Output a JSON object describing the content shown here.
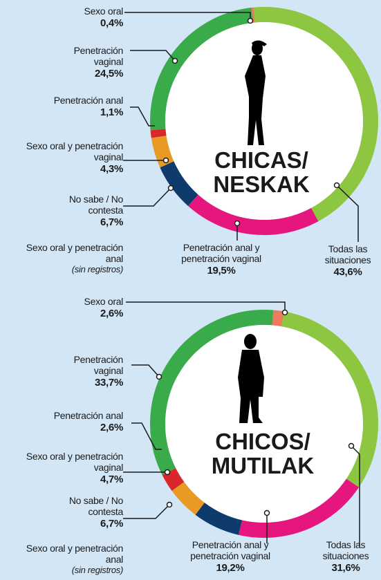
{
  "chart_data": [
    {
      "type": "donut",
      "title_lines": [
        "CHICAS/",
        "NESKAK"
      ],
      "categories": [
        "Sexo oral",
        "Penetración vaginal",
        "Penetración anal",
        "Sexo oral y penetración vaginal",
        "No sabe / No contesta",
        "Penetración anal y penetración vaginal",
        "Todas las situaciones"
      ],
      "values": [
        0.4,
        24.5,
        1.1,
        4.3,
        6.7,
        19.5,
        43.6
      ],
      "value_labels": [
        "0,4%",
        "24,5%",
        "1,1%",
        "4,3%",
        "6,7%",
        "19,5%",
        "43,6%"
      ],
      "colors": [
        "#ec7a5c",
        "#3aab4a",
        "#d8282c",
        "#e99a25",
        "#0e3a6c",
        "#e5177f",
        "#8dc641"
      ],
      "no_data_category": "Sexo oral y penetración anal",
      "no_data_note": "(sin registros)"
    },
    {
      "type": "donut",
      "title_lines": [
        "CHICOS/",
        "MUTILAK"
      ],
      "categories": [
        "Sexo oral",
        "Penetración vaginal",
        "Penetración anal",
        "Sexo oral y penetración vaginal",
        "No sabe / No contesta",
        "Penetración anal y penetración vaginal",
        "Todas las situaciones"
      ],
      "values": [
        2.6,
        33.7,
        2.6,
        4.7,
        6.7,
        19.2,
        31.6
      ],
      "value_labels": [
        "2,6%",
        "33,7%",
        "2,6%",
        "4,7%",
        "6,7%",
        "19,2%",
        "31,6%"
      ],
      "colors": [
        "#ec7a5c",
        "#3aab4a",
        "#d8282c",
        "#e99a25",
        "#0e3a6c",
        "#e5177f",
        "#8dc641"
      ],
      "no_data_category": "Sexo oral y penetración anal",
      "no_data_note": "(sin registros)"
    }
  ]
}
